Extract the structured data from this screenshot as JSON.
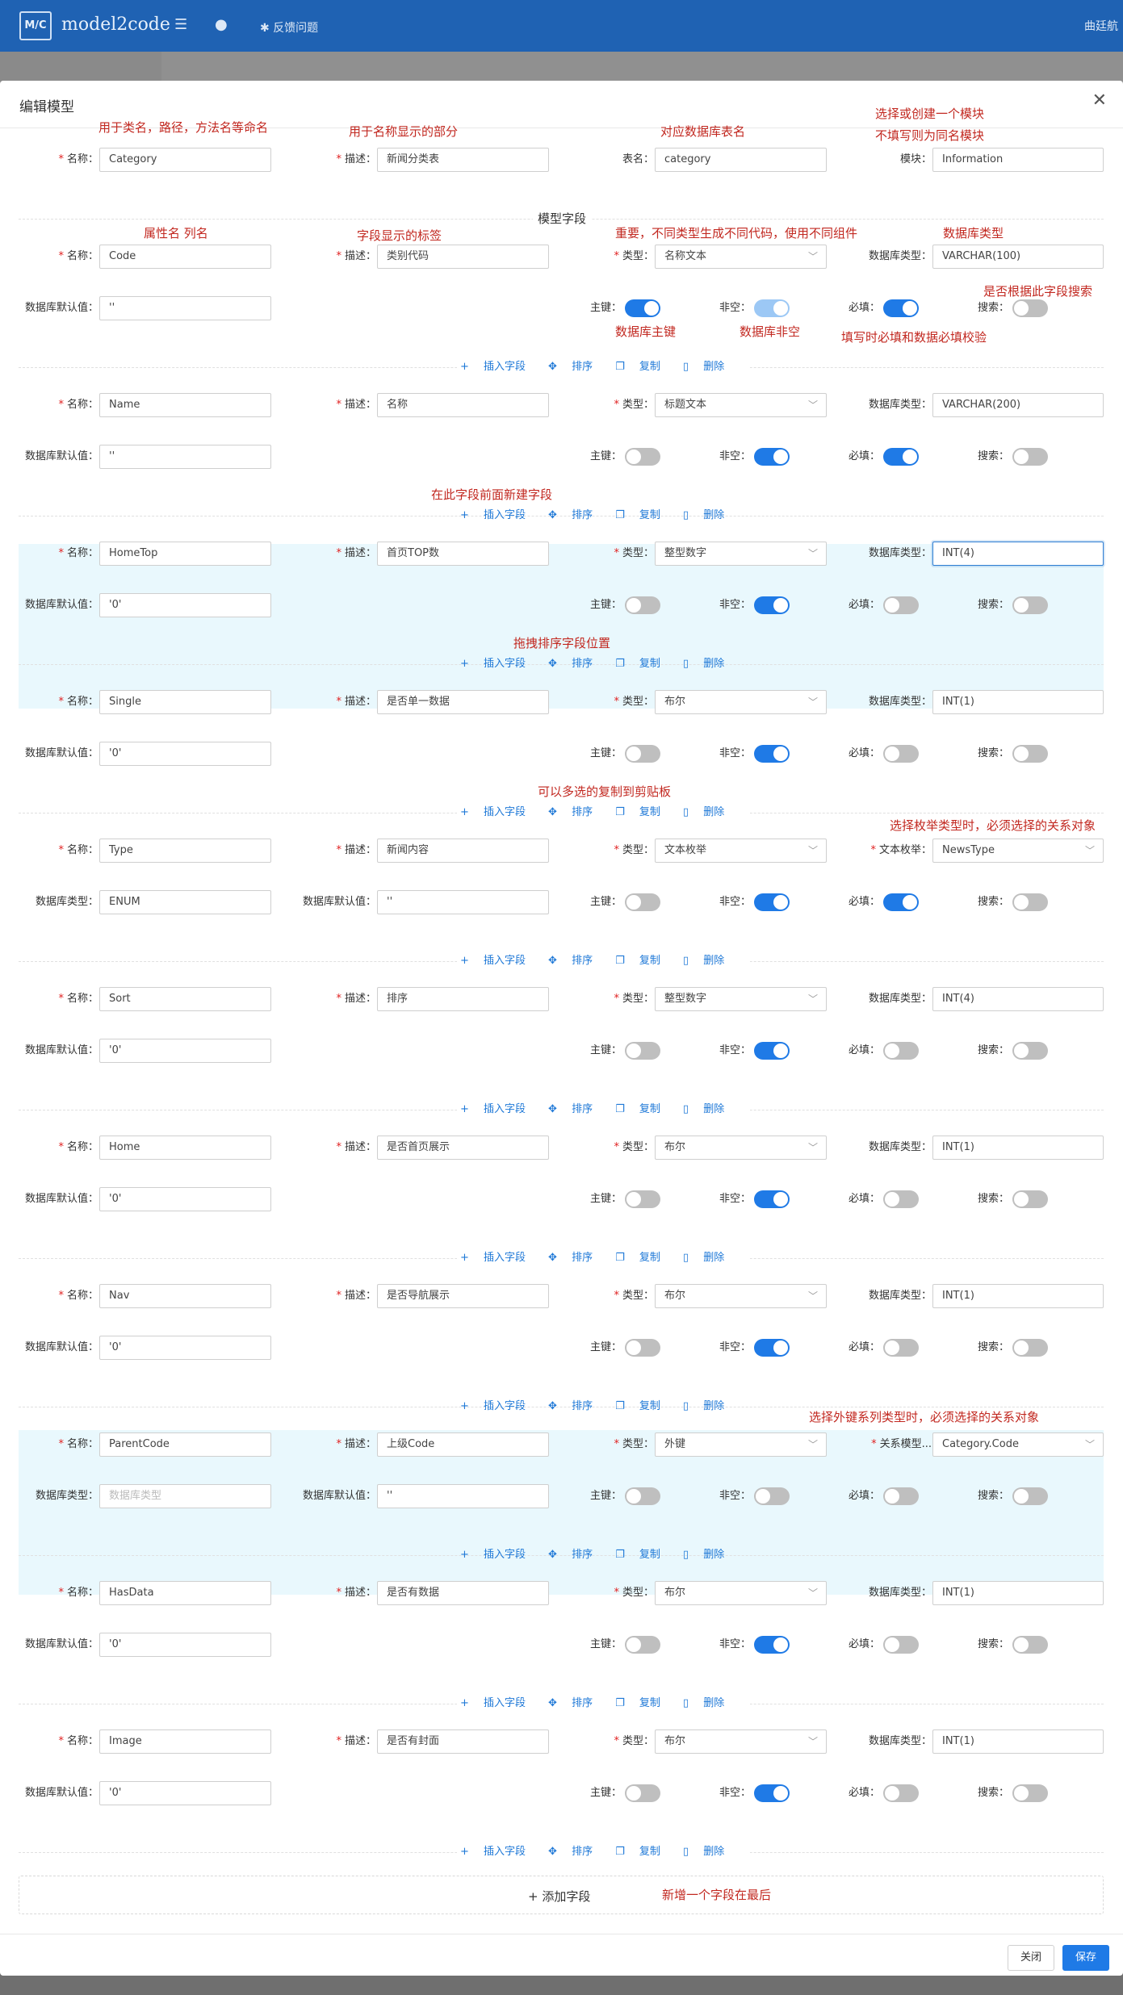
{
  "app": {
    "title": "model2code",
    "feedback": "反馈问题",
    "user": "曲廷航"
  },
  "modal": {
    "title": "编辑模型",
    "section_title": "模型字段",
    "add_field": "添加字段",
    "close_btn": "关闭",
    "save_btn": "保存"
  },
  "labels": {
    "name": "名称：",
    "desc": "描述：",
    "table_name": "表名：",
    "module": "模块：",
    "type": "类型：",
    "db_type": "数据库类型：",
    "db_default": "数据库默认值：",
    "primary_key": "主键：",
    "not_null": "非空：",
    "required": "必填：",
    "search": "搜索：",
    "text_enum": "文本枚举：",
    "relation_model": "关系模型...",
    "db_type_placeholder": "数据库类型"
  },
  "actions": {
    "insert": "插入字段",
    "sort": "排序",
    "copy": "复制",
    "delete": "删除"
  },
  "header_form": {
    "name": "Category",
    "desc": "新闻分类表",
    "table_name": "category",
    "module": "Information"
  },
  "fields": [
    {
      "name": "Code",
      "desc": "类别代码",
      "type": "名称文本",
      "db_type": "VARCHAR(100)",
      "db_default": "''",
      "pk": true,
      "nn": true,
      "req": true,
      "search": false,
      "nn_disabled": true
    },
    {
      "name": "Name",
      "desc": "名称",
      "type": "标题文本",
      "db_type": "VARCHAR(200)",
      "db_default": "''",
      "pk": false,
      "nn": true,
      "req": true,
      "search": false
    },
    {
      "name": "HomeTop",
      "desc": "首页TOP数",
      "type": "整型数字",
      "db_type": "INT(4)",
      "db_default": "'0'",
      "pk": false,
      "nn": true,
      "req": false,
      "search": false
    },
    {
      "name": "Single",
      "desc": "是否单一数据",
      "type": "布尔",
      "db_type": "INT(1)",
      "db_default": "'0'",
      "pk": false,
      "nn": true,
      "req": false,
      "search": false
    },
    {
      "name": "Type",
      "desc": "新闻内容",
      "type": "文本枚举",
      "enum": "NewsType",
      "db_type": "ENUM",
      "db_default": "''",
      "pk": false,
      "nn": true,
      "req": true,
      "search": false
    },
    {
      "name": "Sort",
      "desc": "排序",
      "type": "整型数字",
      "db_type": "INT(4)",
      "db_default": "'0'",
      "pk": false,
      "nn": true,
      "req": false,
      "search": false
    },
    {
      "name": "Home",
      "desc": "是否首页展示",
      "type": "布尔",
      "db_type": "INT(1)",
      "db_default": "'0'",
      "pk": false,
      "nn": true,
      "req": false,
      "search": false
    },
    {
      "name": "Nav",
      "desc": "是否导航展示",
      "type": "布尔",
      "db_type": "INT(1)",
      "db_default": "'0'",
      "pk": false,
      "nn": true,
      "req": false,
      "search": false
    },
    {
      "name": "ParentCode",
      "desc": "上级Code",
      "type": "外键",
      "relation": "Category.Code",
      "db_type": "",
      "db_default": "''",
      "pk": false,
      "nn": false,
      "req": false,
      "search": false
    },
    {
      "name": "HasData",
      "desc": "是否有数据",
      "type": "布尔",
      "db_type": "INT(1)",
      "db_default": "'0'",
      "pk": false,
      "nn": true,
      "req": false,
      "search": false
    },
    {
      "name": "Image",
      "desc": "是否有封面",
      "type": "布尔",
      "db_type": "INT(1)",
      "db_default": "'0'",
      "pk": false,
      "nn": true,
      "req": false,
      "search": false
    }
  ],
  "annotations": [
    "用于类名，路径，方法名等命名",
    "用于名称显示的部分",
    "对应数据库表名",
    "选择或创建一个模块",
    "不填写则为同名模块",
    "属性名 列名",
    "字段显示的标签",
    "重要，不同类型生成不同代码，使用不同组件",
    "数据库类型",
    "是否根据此字段搜索",
    "数据库主键",
    "数据库非空",
    "填写时必填和数据必填校验",
    "在此字段前面新建字段",
    "拖拽排序字段位置",
    "可以多选的复制到剪贴板",
    "选择枚举类型时，必须选择的关系对象",
    "选择外键系列类型时，必须选择的关系对象",
    "新增一个字段在最后"
  ],
  "colors": {
    "primary": "#1f7ae6",
    "topbar": "#1f62b3",
    "annotation": "#c22820",
    "highlight_band": "#e9f8fd"
  }
}
